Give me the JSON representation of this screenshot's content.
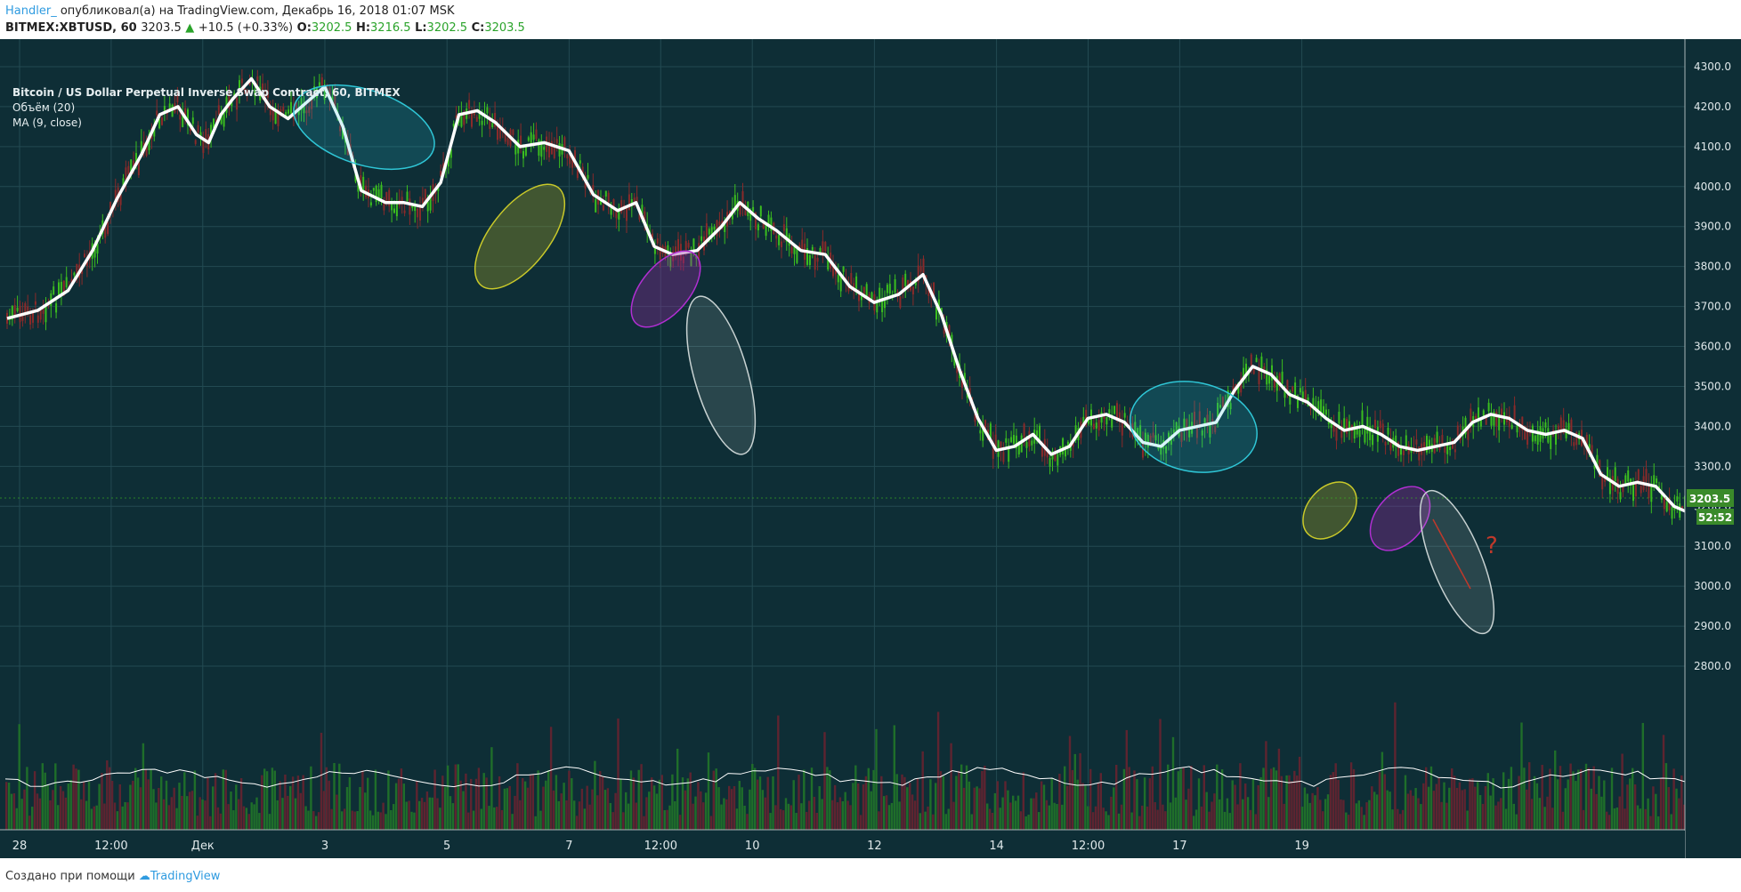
{
  "header": {
    "author": "Handler_",
    "published_text": " опубликовал(а) на TradingView.com, Декабрь 16, 2018 01:07 MSK",
    "symbol": "BITMEX:XBTUSD, 60",
    "last": "3203.5",
    "change_arrow": "▲",
    "change": "+10.5 (+0.33%)",
    "o_label": "O:",
    "o": "3202.5",
    "h_label": "H:",
    "h": "3216.5",
    "l_label": "L:",
    "l": "3202.5",
    "c_label": "C:",
    "c": "3203.5"
  },
  "legend": {
    "title": "Bitcoin / US Dollar Perpetual Inverse Swap Contract, 60, BITMEX",
    "volume": "Объём (20)",
    "ma": "MA (9, close)"
  },
  "price_badge": {
    "value": "3203.5",
    "countdown": "52:52"
  },
  "annotation_question": "?",
  "footer": {
    "created_with": "Создано при помощи",
    "brand": "TradingView"
  },
  "colors": {
    "background": "#0e2e36",
    "up": "#3bbd1f",
    "down": "#8a2a2a",
    "ma": "#ffffff",
    "badge": "#3a8a2a"
  },
  "chart_data": {
    "type": "candlestick",
    "ylim": [
      2800,
      4350
    ],
    "y_ticks": [
      "4300.0",
      "4200.0",
      "4100.0",
      "4000.0",
      "3900.0",
      "3800.0",
      "3700.0",
      "3600.0",
      "3500.0",
      "3400.0",
      "3300.0",
      "3200.0",
      "3100.0",
      "3000.0",
      "2900.0",
      "2800.0"
    ],
    "x_ticks": [
      "28",
      "12:00",
      "Дек",
      "3",
      "5",
      "7",
      "12:00",
      "10",
      "12",
      "14",
      "12:00",
      "17",
      "19"
    ],
    "ma_points": [
      [
        0,
        3670
      ],
      [
        0.5,
        3690
      ],
      [
        1,
        3740
      ],
      [
        1.4,
        3840
      ],
      [
        1.8,
        3970
      ],
      [
        2.2,
        4080
      ],
      [
        2.5,
        4180
      ],
      [
        2.8,
        4200
      ],
      [
        3.1,
        4130
      ],
      [
        3.3,
        4110
      ],
      [
        3.5,
        4180
      ],
      [
        3.7,
        4220
      ],
      [
        4,
        4270
      ],
      [
        4.3,
        4200
      ],
      [
        4.6,
        4170
      ],
      [
        4.9,
        4210
      ],
      [
        5.2,
        4250
      ],
      [
        5.5,
        4150
      ],
      [
        5.8,
        3990
      ],
      [
        6.2,
        3960
      ],
      [
        6.5,
        3960
      ],
      [
        6.8,
        3950
      ],
      [
        7.1,
        4010
      ],
      [
        7.4,
        4180
      ],
      [
        7.7,
        4190
      ],
      [
        8,
        4160
      ],
      [
        8.4,
        4100
      ],
      [
        8.8,
        4110
      ],
      [
        9.2,
        4090
      ],
      [
        9.6,
        3980
      ],
      [
        10,
        3940
      ],
      [
        10.3,
        3960
      ],
      [
        10.6,
        3850
      ],
      [
        10.9,
        3830
      ],
      [
        11.3,
        3840
      ],
      [
        11.7,
        3900
      ],
      [
        12,
        3960
      ],
      [
        12.3,
        3920
      ],
      [
        12.6,
        3890
      ],
      [
        13,
        3840
      ],
      [
        13.4,
        3830
      ],
      [
        13.8,
        3750
      ],
      [
        14.2,
        3710
      ],
      [
        14.6,
        3730
      ],
      [
        15,
        3780
      ],
      [
        15.3,
        3680
      ],
      [
        15.6,
        3540
      ],
      [
        15.9,
        3420
      ],
      [
        16.2,
        3340
      ],
      [
        16.5,
        3350
      ],
      [
        16.8,
        3380
      ],
      [
        17.1,
        3330
      ],
      [
        17.4,
        3350
      ],
      [
        17.7,
        3420
      ],
      [
        18,
        3430
      ],
      [
        18.3,
        3410
      ],
      [
        18.6,
        3360
      ],
      [
        18.9,
        3350
      ],
      [
        19.2,
        3390
      ],
      [
        19.5,
        3400
      ],
      [
        19.8,
        3410
      ],
      [
        20.1,
        3490
      ],
      [
        20.4,
        3550
      ],
      [
        20.7,
        3530
      ],
      [
        21,
        3480
      ],
      [
        21.3,
        3460
      ],
      [
        21.6,
        3420
      ],
      [
        21.9,
        3390
      ],
      [
        22.2,
        3400
      ],
      [
        22.5,
        3380
      ],
      [
        22.8,
        3350
      ],
      [
        23.1,
        3340
      ],
      [
        23.4,
        3350
      ],
      [
        23.7,
        3360
      ],
      [
        24,
        3410
      ],
      [
        24.3,
        3430
      ],
      [
        24.6,
        3420
      ],
      [
        24.9,
        3390
      ],
      [
        25.2,
        3380
      ],
      [
        25.5,
        3390
      ],
      [
        25.8,
        3370
      ],
      [
        26.1,
        3280
      ],
      [
        26.4,
        3250
      ],
      [
        26.7,
        3260
      ],
      [
        27,
        3250
      ],
      [
        27.3,
        3200
      ],
      [
        27.6,
        3180
      ],
      [
        27.9,
        3210
      ],
      [
        28.2,
        3180
      ],
      [
        28.5,
        3150
      ],
      [
        28.8,
        3160
      ],
      [
        29,
        3180
      ]
    ]
  }
}
